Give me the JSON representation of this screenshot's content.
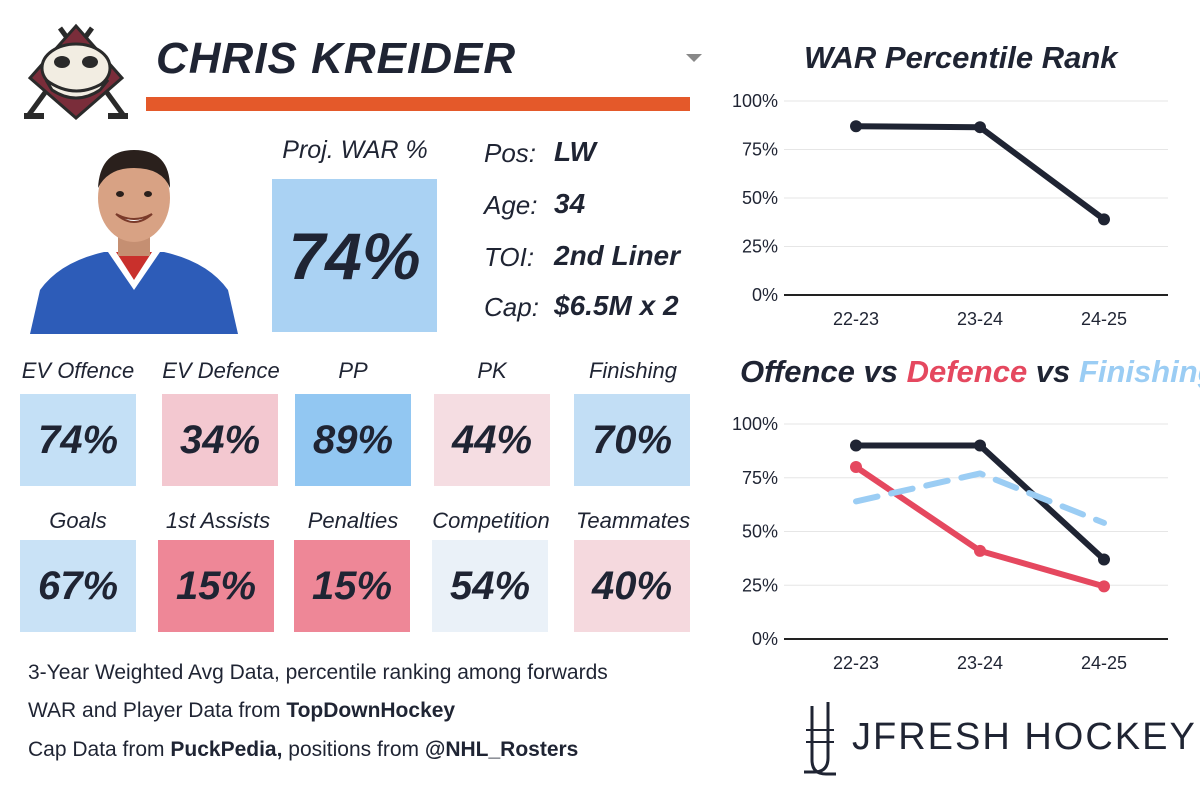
{
  "player": {
    "name": "CHRIS KREIDER",
    "proj_war_label": "Proj. WAR %",
    "proj_war_value": "74%",
    "proj_war_color": "#aad2f3"
  },
  "info": [
    {
      "label": "Pos:",
      "value": "LW"
    },
    {
      "label": "Age:",
      "value": "34"
    },
    {
      "label": "TOI:",
      "value": "2nd Liner"
    },
    {
      "label": "Cap:",
      "value": "$6.5M x 2"
    }
  ],
  "stats": [
    {
      "label": "EV Offence",
      "value": "74%",
      "color": "#c4e0f6"
    },
    {
      "label": "EV Defence",
      "value": "34%",
      "color": "#f3c8d0"
    },
    {
      "label": "PP",
      "value": "89%",
      "color": "#92c7f2"
    },
    {
      "label": "PK",
      "value": "44%",
      "color": "#f5dde2"
    },
    {
      "label": "Finishing",
      "value": "70%",
      "color": "#c2def5"
    },
    {
      "label": "Goals",
      "value": "67%",
      "color": "#c9e2f6"
    },
    {
      "label": "1st Assists",
      "value": "15%",
      "color": "#ee8797"
    },
    {
      "label": "Penalties",
      "value": "15%",
      "color": "#ee8797"
    },
    {
      "label": "Competition",
      "value": "54%",
      "color": "#eaf1f8"
    },
    {
      "label": "Teammates",
      "value": "40%",
      "color": "#f5d9de"
    }
  ],
  "notes": {
    "line1": "3-Year Weighted Avg Data, percentile ranking among forwards",
    "line2_prefix": "WAR and Player Data from ",
    "line2_bold": "TopDownHockey",
    "line3_prefix": "Cap Data from ",
    "line3_bold": "PuckPedia,",
    "line3_mid": " positions from ",
    "line3_bold2": "@NHL_Rosters"
  },
  "brand": {
    "text": "JFRESH HOCKEY"
  },
  "colors": {
    "dark": "#1f2433",
    "accent_orange": "#e4592a",
    "defence_red": "#e5485f",
    "finishing_blue": "#9bcdf4"
  },
  "icons": {
    "team_logo": "mighty-ducks-mask-logo",
    "brand": "hockey-stick-j-icon",
    "caret": "chevron-down-icon"
  },
  "chart_data": [
    {
      "type": "line",
      "title": "WAR Percentile Rank",
      "categories": [
        "22-23",
        "23-24",
        "24-25"
      ],
      "series": [
        {
          "values": [
            87,
            86.5,
            39
          ],
          "color": "#1f2433"
        }
      ],
      "ylim": [
        0,
        100
      ],
      "yticks": [
        "0%",
        "25%",
        "50%",
        "75%",
        "100%"
      ],
      "grid": true
    },
    {
      "type": "line",
      "title_parts": [
        {
          "text": "Offence",
          "color": "#1f2433"
        },
        {
          "text": " vs ",
          "color": "#1f2433"
        },
        {
          "text": "Defence",
          "color": "#e5485f"
        },
        {
          "text": " vs ",
          "color": "#1f2433"
        },
        {
          "text": "Finishing",
          "color": "#9bcdf4"
        }
      ],
      "categories": [
        "22-23",
        "23-24",
        "24-25"
      ],
      "series": [
        {
          "name": "Offence",
          "values": [
            90,
            90,
            37
          ],
          "color": "#1f2433",
          "dashed": false
        },
        {
          "name": "Defence",
          "values": [
            80,
            41,
            24.5
          ],
          "color": "#e5485f",
          "dashed": false
        },
        {
          "name": "Finishing",
          "values": [
            64,
            77,
            54
          ],
          "color": "#9bcdf4",
          "dashed": true
        }
      ],
      "ylim": [
        0,
        100
      ],
      "yticks": [
        "0%",
        "25%",
        "50%",
        "75%",
        "100%"
      ],
      "grid": true
    }
  ]
}
